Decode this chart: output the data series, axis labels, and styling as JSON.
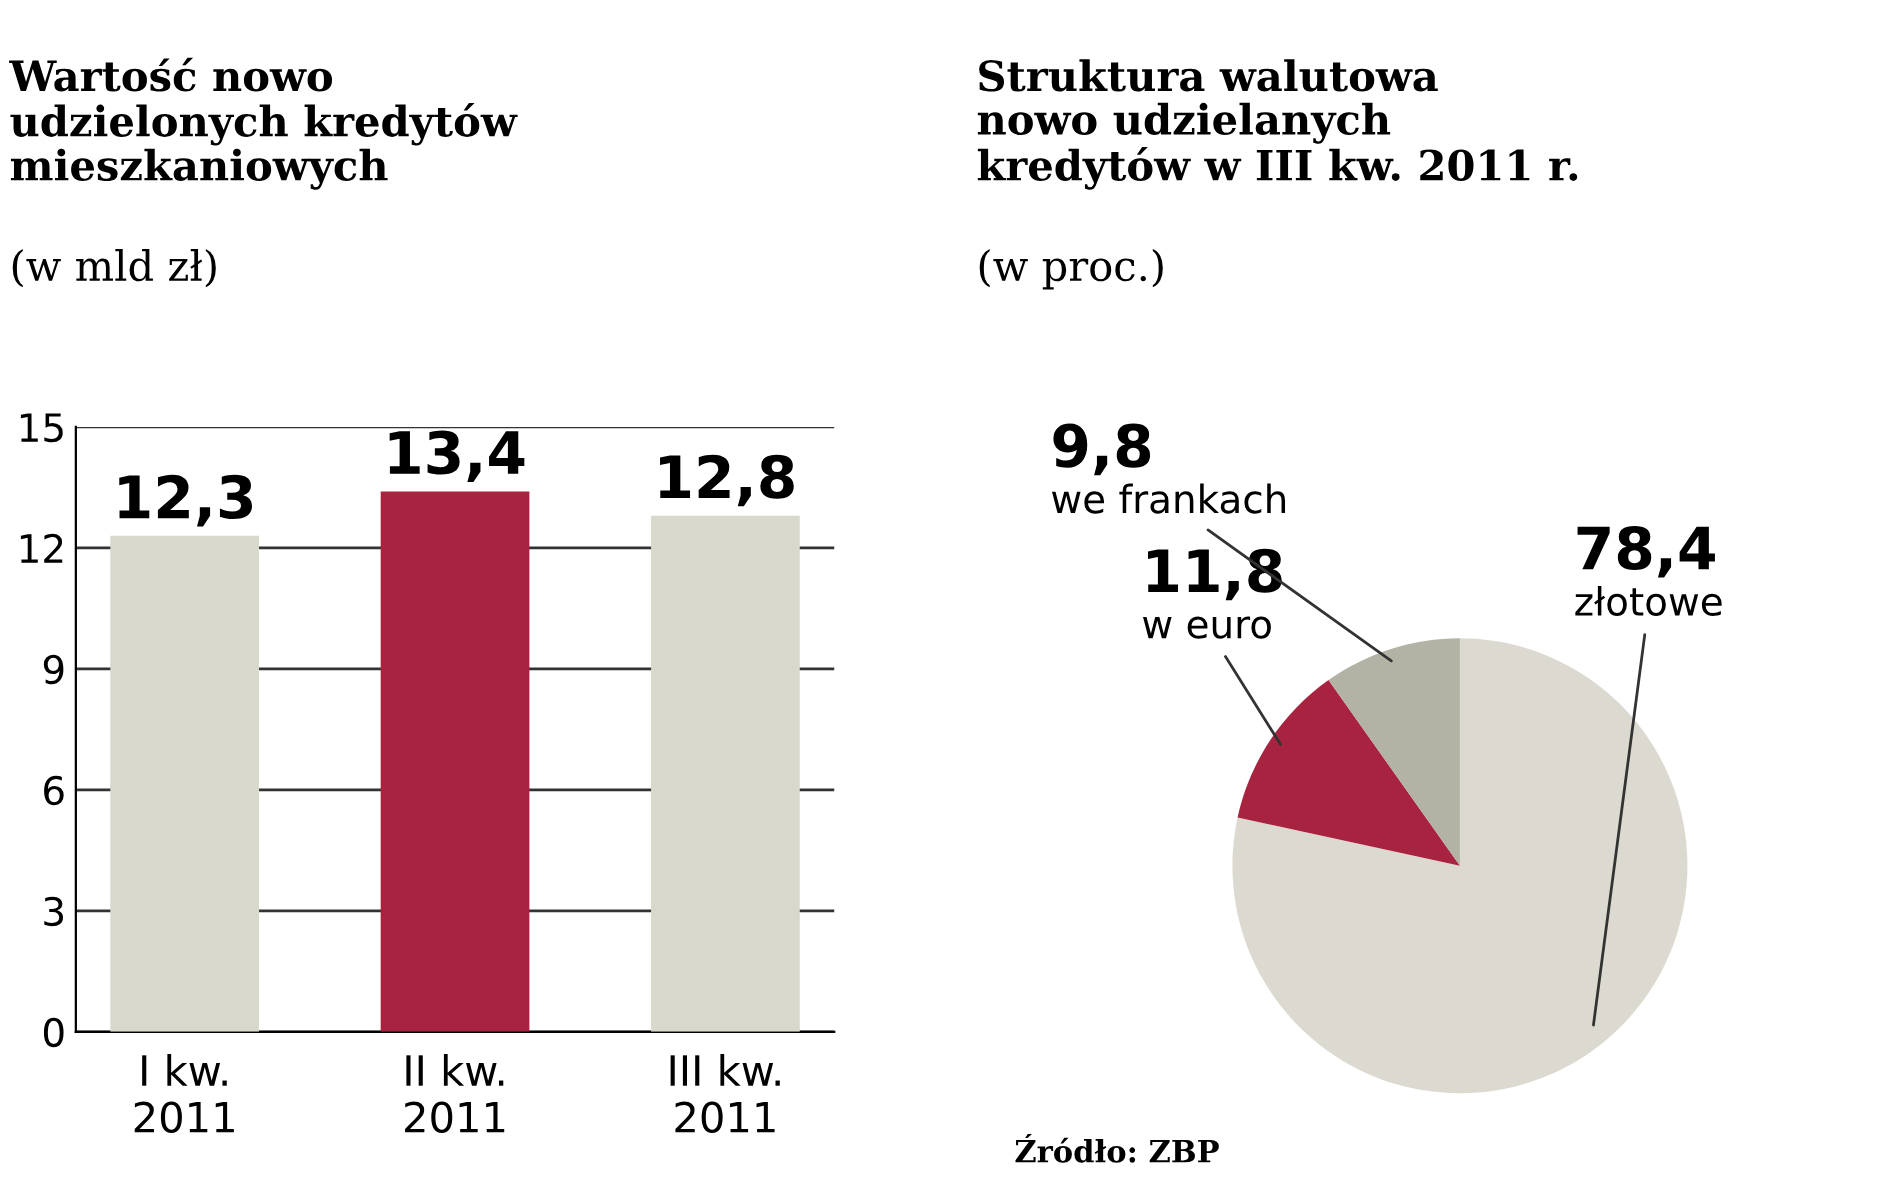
{
  "chart_data": [
    {
      "type": "bar",
      "title": "Wartość nowo\nudzielonych kredytów\nmieszkaniowych",
      "subtitle": "(w mld zł)",
      "categories": [
        "I kw.\n2011",
        "II kw.\n2011",
        "III kw.\n2011"
      ],
      "values": [
        12.3,
        13.4,
        12.8
      ],
      "colors": [
        "#d9d8cc",
        "#a8233f",
        "#d9d8cc"
      ],
      "ylim": [
        0,
        15
      ],
      "yticks": [
        0,
        3,
        6,
        9,
        12,
        15
      ],
      "grid": "y",
      "value_labels": [
        "12,3",
        "13,4",
        "12,8"
      ],
      "legend": false
    },
    {
      "type": "pie",
      "title": "Struktura walutowa\nnowo udzielanych\nkredytów w III kw. 2011 r.",
      "subtitle": "(w proc.)",
      "categories": [
        "złotowe",
        "w euro",
        "we frankach"
      ],
      "values": [
        78.4,
        11.8,
        9.8
      ],
      "colors": [
        "#dcdad0",
        "#a8233f",
        "#b3b3a5"
      ],
      "value_labels": [
        "78,4",
        "11,8",
        "9,8"
      ],
      "legend": false,
      "annotations": [
        "Źródło: ZBP"
      ]
    }
  ]
}
